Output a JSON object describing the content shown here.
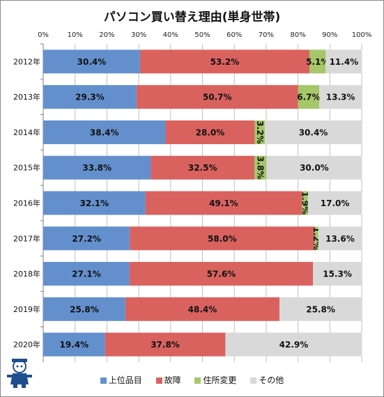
{
  "chart_data": {
    "type": "bar",
    "orientation": "horizontal",
    "stacked": true,
    "title": "パソコン買い替え理由(単身世帯)",
    "xlabel": "",
    "ylabel": "",
    "xlim": [
      0,
      100
    ],
    "x_ticks": [
      "0%",
      "10%",
      "20%",
      "30%",
      "40%",
      "50%",
      "60%",
      "70%",
      "80%",
      "90%",
      "100%"
    ],
    "grid": true,
    "legend_position": "bottom",
    "categories": [
      "2012年",
      "2013年",
      "2014年",
      "2015年",
      "2016年",
      "2017年",
      "2018年",
      "2019年",
      "2020年"
    ],
    "series": [
      {
        "name": "上位品目",
        "color": "#6390cd",
        "values": [
          30.4,
          29.3,
          38.4,
          33.8,
          32.1,
          27.2,
          27.1,
          25.8,
          19.4
        ],
        "labels": [
          "30.4%",
          "29.3%",
          "38.4%",
          "33.8%",
          "32.1%",
          "27.2%",
          "27.1%",
          "25.8%",
          "19.4%"
        ]
      },
      {
        "name": "故障",
        "color": "#d9625f",
        "values": [
          53.2,
          50.7,
          28.0,
          32.5,
          49.1,
          58.0,
          57.6,
          48.4,
          37.8
        ],
        "labels": [
          "53.2%",
          "50.7%",
          "28.0%",
          "32.5%",
          "49.1%",
          "58.0%",
          "57.6%",
          "48.4%",
          "37.8%"
        ]
      },
      {
        "name": "住所変更",
        "color": "#a6c66a",
        "values": [
          5.1,
          6.7,
          3.2,
          3.8,
          1.9,
          1.2,
          0,
          0,
          0
        ],
        "labels": [
          "5.1%",
          "6.7%",
          "3.2%",
          "3.8%",
          "1.9%",
          "1.2%",
          "",
          "",
          ""
        ]
      },
      {
        "name": "その他",
        "color": "#d9d9d9",
        "values": [
          11.4,
          13.3,
          30.4,
          30.0,
          17.0,
          13.6,
          15.3,
          25.8,
          42.9
        ],
        "labels": [
          "11.4%",
          "13.3%",
          "30.4%",
          "30.0%",
          "17.0%",
          "13.6%",
          "15.3%",
          "25.8%",
          "42.9%"
        ]
      }
    ]
  },
  "mascot": {
    "icon": "mascot-character-icon"
  }
}
